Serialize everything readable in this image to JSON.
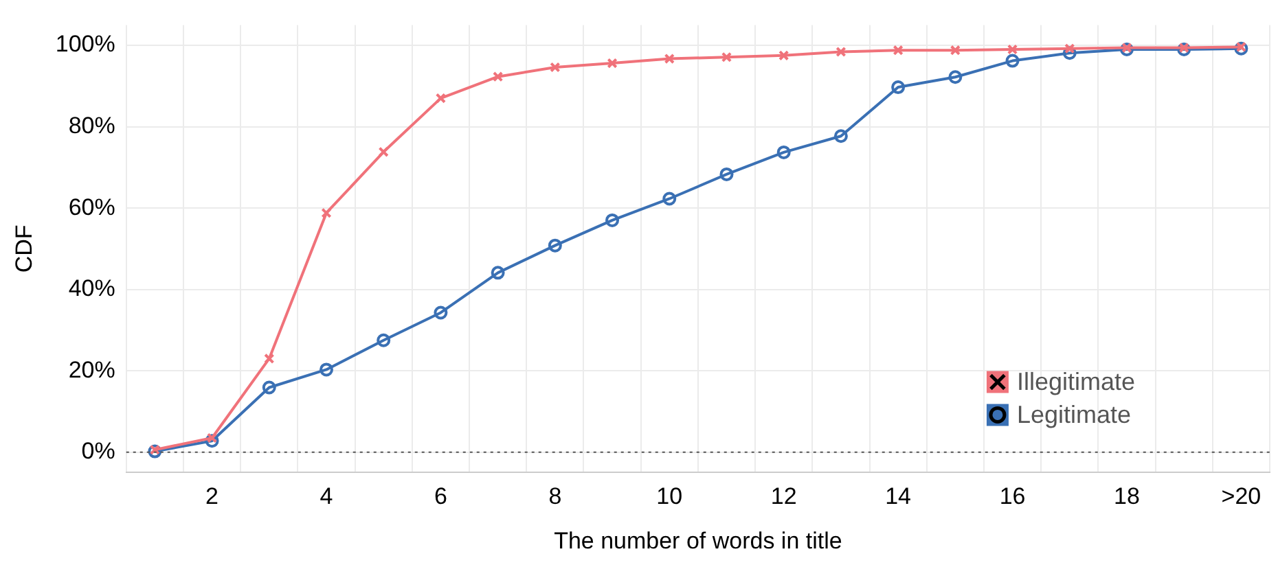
{
  "chart_data": {
    "type": "line",
    "xlabel": "The number of words in title",
    "ylabel": "CDF",
    "categories": [
      null,
      "2",
      null,
      "4",
      null,
      "6",
      null,
      "8",
      null,
      "10",
      null,
      "12",
      null,
      "14",
      null,
      "16",
      null,
      "18",
      null,
      ">20"
    ],
    "series": [
      {
        "name": "Illegitimate",
        "color": "#f0727a",
        "marker": "cross",
        "values": [
          0.6,
          3.5,
          23,
          58.8,
          73.8,
          87,
          92.3,
          94.6,
          95.6,
          96.7,
          97.1,
          97.5,
          98.4,
          98.8,
          98.8,
          99,
          99.2,
          99.4,
          99.4,
          99.6
        ]
      },
      {
        "name": "Legitimate",
        "color": "#3a70b4",
        "marker": "circle",
        "values": [
          0.2,
          2.8,
          15.9,
          20.3,
          27.5,
          34.3,
          44.1,
          50.8,
          57,
          62.3,
          68.3,
          73.7,
          77.7,
          89.7,
          92.2,
          96.2,
          98.1,
          99,
          99,
          99.2
        ]
      }
    ],
    "ylim": [
      -5,
      105
    ],
    "yticks": [
      {
        "value": 0,
        "label": "0%"
      },
      {
        "value": 20,
        "label": "20%"
      },
      {
        "value": 40,
        "label": "40%"
      },
      {
        "value": 60,
        "label": "60%"
      },
      {
        "value": 80,
        "label": "80%"
      },
      {
        "value": 100,
        "label": "100%"
      }
    ],
    "ref_lines": [
      {
        "axis": "y",
        "value": 0,
        "line_style": "dotted",
        "color": "#555555"
      }
    ],
    "grid": true,
    "legend": "bottom right",
    "line_style": "solid"
  }
}
